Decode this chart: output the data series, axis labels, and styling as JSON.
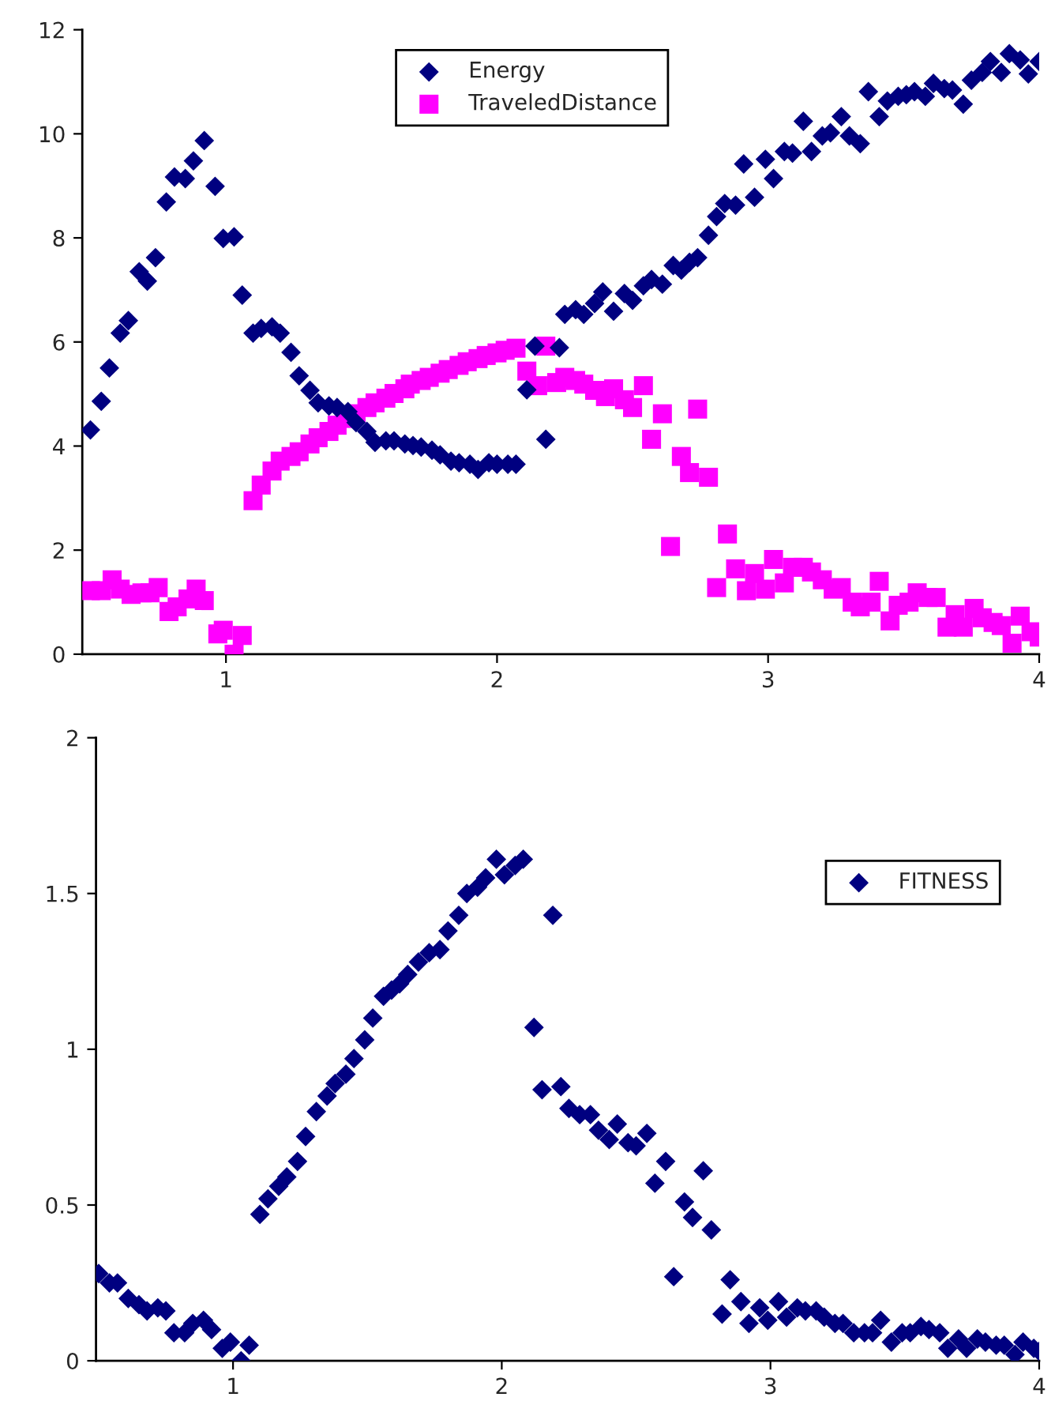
{
  "chart_data": [
    {
      "type": "scatter",
      "xlim": [
        0.47,
        4.0
      ],
      "ylim": [
        0,
        12
      ],
      "xticks": [
        1,
        2,
        3,
        4
      ],
      "yticks": [
        0,
        2,
        4,
        6,
        8,
        10,
        12
      ],
      "grid": false,
      "legend": "top",
      "series": [
        {
          "name": "Energy",
          "color": "#000080",
          "marker": "diamond",
          "x": [
            0.5,
            0.54,
            0.57,
            0.61,
            0.64,
            0.68,
            0.71,
            0.74,
            0.78,
            0.81,
            0.85,
            0.88,
            0.92,
            0.96,
            0.99,
            1.03,
            1.06,
            1.1,
            1.13,
            1.17,
            1.2,
            1.24,
            1.27,
            1.31,
            1.34,
            1.38,
            1.41,
            1.45,
            1.48,
            1.52,
            1.55,
            1.59,
            1.62,
            1.66,
            1.69,
            1.72,
            1.76,
            1.79,
            1.83,
            1.86,
            1.9,
            1.93,
            1.97,
            2.0,
            2.04,
            2.07,
            2.11,
            2.14,
            2.18,
            2.23,
            2.25,
            2.29,
            2.32,
            2.36,
            2.39,
            2.43,
            2.47,
            2.5,
            2.54,
            2.57,
            2.61,
            2.65,
            2.68,
            2.71,
            2.74,
            2.78,
            2.81,
            2.84,
            2.88,
            2.91,
            2.95,
            2.99,
            3.02,
            3.06,
            3.09,
            3.13,
            3.16,
            3.2,
            3.23,
            3.27,
            3.3,
            3.34,
            3.37,
            3.41,
            3.44,
            3.48,
            3.51,
            3.54,
            3.58,
            3.61,
            3.65,
            3.68,
            3.72,
            3.75,
            3.79,
            3.82,
            3.86,
            3.89,
            3.93,
            3.96,
            4.0
          ],
          "values": [
            4.31,
            4.86,
            5.5,
            6.17,
            6.41,
            7.35,
            7.17,
            7.62,
            8.69,
            9.17,
            9.14,
            9.48,
            9.87,
            8.99,
            7.99,
            8.02,
            6.9,
            6.17,
            6.26,
            6.29,
            6.17,
            5.8,
            5.35,
            5.07,
            4.83,
            4.77,
            4.74,
            4.66,
            4.45,
            4.28,
            4.07,
            4.1,
            4.1,
            4.04,
            4.01,
            3.98,
            3.92,
            3.83,
            3.71,
            3.68,
            3.65,
            3.55,
            3.68,
            3.65,
            3.65,
            3.65,
            5.08,
            5.92,
            4.13,
            5.89,
            6.53,
            6.62,
            6.53,
            6.74,
            6.96,
            6.59,
            6.93,
            6.8,
            7.08,
            7.2,
            7.11,
            7.47,
            7.38,
            7.53,
            7.62,
            8.05,
            8.41,
            8.66,
            8.63,
            9.42,
            8.78,
            9.51,
            9.14,
            9.66,
            9.63,
            10.24,
            9.66,
            9.96,
            10.02,
            10.33,
            9.96,
            9.81,
            10.81,
            10.33,
            10.63,
            10.72,
            10.75,
            10.81,
            10.72,
            10.97,
            10.87,
            10.84,
            10.57,
            11.03,
            11.18,
            11.39,
            11.18,
            11.54,
            11.42,
            11.15,
            11.39
          ]
        },
        {
          "name": "TraveledDistance",
          "color": "#ff00ff",
          "marker": "square",
          "x": [
            0.5,
            0.54,
            0.58,
            0.61,
            0.65,
            0.69,
            0.72,
            0.75,
            0.79,
            0.82,
            0.86,
            0.89,
            0.92,
            0.97,
            0.99,
            1.03,
            1.06,
            1.1,
            1.13,
            1.17,
            1.2,
            1.24,
            1.27,
            1.31,
            1.34,
            1.38,
            1.41,
            1.45,
            1.48,
            1.52,
            1.55,
            1.59,
            1.62,
            1.66,
            1.68,
            1.72,
            1.75,
            1.79,
            1.82,
            1.86,
            1.89,
            1.93,
            1.96,
            2.0,
            2.03,
            2.07,
            2.11,
            2.15,
            2.18,
            2.22,
            2.25,
            2.29,
            2.32,
            2.36,
            2.4,
            2.43,
            2.47,
            2.5,
            2.54,
            2.57,
            2.61,
            2.64,
            2.68,
            2.71,
            2.74,
            2.78,
            2.81,
            2.85,
            2.88,
            2.92,
            2.95,
            2.99,
            3.02,
            3.06,
            3.09,
            3.13,
            3.16,
            3.2,
            3.24,
            3.27,
            3.31,
            3.34,
            3.38,
            3.41,
            3.45,
            3.48,
            3.52,
            3.55,
            3.59,
            3.62,
            3.66,
            3.69,
            3.72,
            3.76,
            3.79,
            3.83,
            3.86,
            3.9,
            3.93,
            3.97,
            4.0
          ],
          "values": [
            1.22,
            1.22,
            1.43,
            1.25,
            1.15,
            1.18,
            1.18,
            1.28,
            0.82,
            0.91,
            1.06,
            1.25,
            1.03,
            0.39,
            0.46,
            0.0,
            0.36,
            2.95,
            3.25,
            3.52,
            3.71,
            3.8,
            3.89,
            4.04,
            4.16,
            4.28,
            4.4,
            4.53,
            4.62,
            4.74,
            4.83,
            4.92,
            5.01,
            5.1,
            5.19,
            5.26,
            5.32,
            5.4,
            5.47,
            5.55,
            5.62,
            5.68,
            5.74,
            5.79,
            5.84,
            5.88,
            5.44,
            5.16,
            5.92,
            5.22,
            5.32,
            5.26,
            5.19,
            5.07,
            4.95,
            5.1,
            4.89,
            4.74,
            5.16,
            4.13,
            4.62,
            2.07,
            3.8,
            3.49,
            4.71,
            3.4,
            1.28,
            2.31,
            1.64,
            1.22,
            1.55,
            1.25,
            1.82,
            1.37,
            1.67,
            1.67,
            1.58,
            1.43,
            1.25,
            1.28,
            1.0,
            0.91,
            1.0,
            1.4,
            0.64,
            0.94,
            1.0,
            1.18,
            1.09,
            1.09,
            0.52,
            0.76,
            0.52,
            0.88,
            0.7,
            0.61,
            0.55,
            0.21,
            0.73,
            0.43,
            0.33
          ]
        }
      ]
    },
    {
      "type": "scatter",
      "xlim": [
        0.49,
        4.0
      ],
      "ylim": [
        0,
        2
      ],
      "xticks": [
        1,
        2,
        3,
        4
      ],
      "yticks": [
        0,
        0.5,
        1,
        1.5,
        2
      ],
      "grid": false,
      "legend": "top right",
      "series": [
        {
          "name": "FITNESS",
          "color": "#000080",
          "marker": "diamond",
          "x": [
            0.5,
            0.54,
            0.57,
            0.61,
            0.65,
            0.68,
            0.72,
            0.75,
            0.78,
            0.82,
            0.85,
            0.89,
            0.92,
            0.96,
            0.99,
            1.03,
            1.06,
            1.1,
            1.13,
            1.17,
            1.2,
            1.24,
            1.27,
            1.31,
            1.35,
            1.38,
            1.42,
            1.45,
            1.49,
            1.52,
            1.56,
            1.59,
            1.62,
            1.65,
            1.69,
            1.73,
            1.77,
            1.8,
            1.84,
            1.87,
            1.91,
            1.94,
            1.98,
            2.01,
            2.05,
            2.08,
            2.12,
            2.15,
            2.19,
            2.22,
            2.25,
            2.29,
            2.33,
            2.36,
            2.4,
            2.43,
            2.47,
            2.5,
            2.54,
            2.57,
            2.61,
            2.64,
            2.68,
            2.71,
            2.75,
            2.78,
            2.82,
            2.85,
            2.89,
            2.92,
            2.96,
            2.99,
            3.03,
            3.06,
            3.1,
            3.13,
            3.17,
            3.2,
            3.24,
            3.27,
            3.31,
            3.35,
            3.38,
            3.41,
            3.45,
            3.49,
            3.52,
            3.56,
            3.59,
            3.63,
            3.66,
            3.7,
            3.73,
            3.77,
            3.8,
            3.84,
            3.87,
            3.91,
            3.94,
            3.98,
            4.0
          ],
          "values": [
            0.28,
            0.25,
            0.25,
            0.2,
            0.18,
            0.16,
            0.17,
            0.16,
            0.09,
            0.09,
            0.12,
            0.13,
            0.1,
            0.04,
            0.06,
            0.0,
            0.05,
            0.47,
            0.52,
            0.56,
            0.59,
            0.64,
            0.72,
            0.8,
            0.85,
            0.89,
            0.92,
            0.97,
            1.03,
            1.1,
            1.17,
            1.19,
            1.21,
            1.24,
            1.28,
            1.31,
            1.32,
            1.38,
            1.43,
            1.5,
            1.52,
            1.55,
            1.61,
            1.56,
            1.59,
            1.61,
            1.07,
            0.87,
            1.43,
            0.88,
            0.81,
            0.79,
            0.79,
            0.74,
            0.71,
            0.76,
            0.7,
            0.69,
            0.73,
            0.57,
            0.64,
            0.27,
            0.51,
            0.46,
            0.61,
            0.42,
            0.15,
            0.26,
            0.19,
            0.12,
            0.17,
            0.13,
            0.19,
            0.14,
            0.17,
            0.16,
            0.16,
            0.14,
            0.12,
            0.12,
            0.09,
            0.09,
            0.09,
            0.13,
            0.06,
            0.09,
            0.09,
            0.11,
            0.1,
            0.09,
            0.04,
            0.07,
            0.04,
            0.07,
            0.06,
            0.05,
            0.05,
            0.02,
            0.06,
            0.04,
            0.03
          ]
        }
      ]
    }
  ]
}
